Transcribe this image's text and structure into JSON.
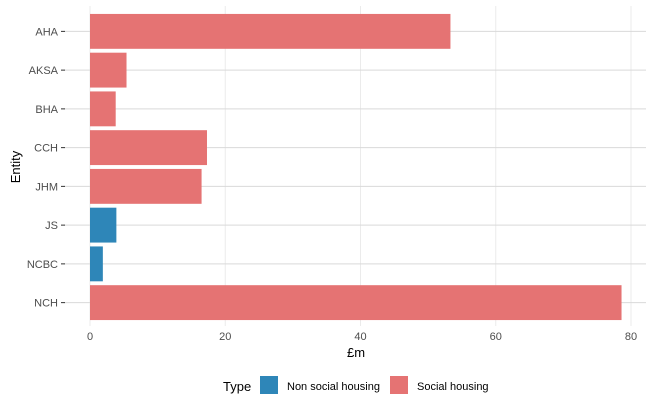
{
  "chart_data": {
    "type": "bar",
    "orientation": "horizontal",
    "categories": [
      "AHA",
      "AKSA",
      "BHA",
      "CCH",
      "JHM",
      "JS",
      "NCBC",
      "NCH"
    ],
    "values": [
      53.3,
      5.4,
      3.8,
      17.3,
      16.5,
      3.9,
      1.9,
      78.6
    ],
    "types": [
      "Social housing",
      "Social housing",
      "Social housing",
      "Social housing",
      "Social housing",
      "Non social housing",
      "Non social housing",
      "Social housing"
    ],
    "xlabel": "£m",
    "ylabel": "Entity",
    "xlim": [
      0,
      80
    ],
    "x_ticks": [
      0,
      20,
      40,
      60,
      80
    ],
    "grid": true,
    "legend": {
      "title": "Type",
      "position": "bottom",
      "entries": [
        {
          "label": "Non social housing",
          "color": "#2e86b8"
        },
        {
          "label": "Social housing",
          "color": "#e57373"
        }
      ]
    }
  }
}
